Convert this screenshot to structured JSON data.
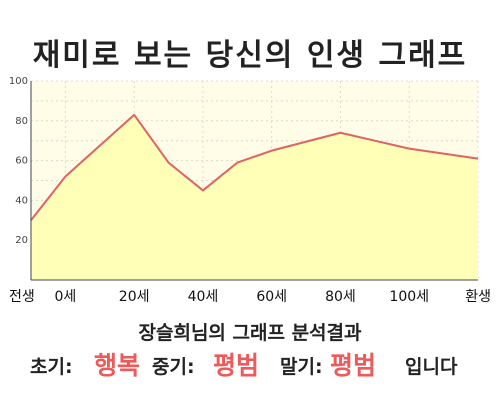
{
  "title": "재미로 보는 당신의 인생 그래프",
  "chart_data": {
    "type": "area",
    "title": "재미로 보는 당신의 인생 그래프",
    "x": [
      -10,
      0,
      20,
      30,
      40,
      50,
      60,
      80,
      100,
      120
    ],
    "y": [
      30,
      52,
      83,
      59,
      45,
      59,
      65,
      74,
      66,
      61
    ],
    "xticks": [
      {
        "value": -10,
        "label": "전생"
      },
      {
        "value": 0,
        "label": "0세"
      },
      {
        "value": 20,
        "label": "20세"
      },
      {
        "value": 40,
        "label": "40세"
      },
      {
        "value": 60,
        "label": "60세"
      },
      {
        "value": 80,
        "label": "80세"
      },
      {
        "value": 100,
        "label": "100세"
      },
      {
        "value": 120,
        "label": "환생"
      }
    ],
    "yticks": [
      20,
      40,
      60,
      80,
      100
    ],
    "xlim": [
      -10,
      120
    ],
    "ylim": [
      0,
      100
    ],
    "grid": true,
    "line_color": "#e06262",
    "fill_color": "#ffffb8"
  },
  "result": {
    "title": "장슬희님의 그래프 분석결과",
    "early_label": "초기:",
    "early_value": "행복",
    "mid_label": "중기:",
    "mid_value": "평범",
    "late_label": "말기:",
    "late_value": "평범",
    "suffix": "입니다"
  }
}
